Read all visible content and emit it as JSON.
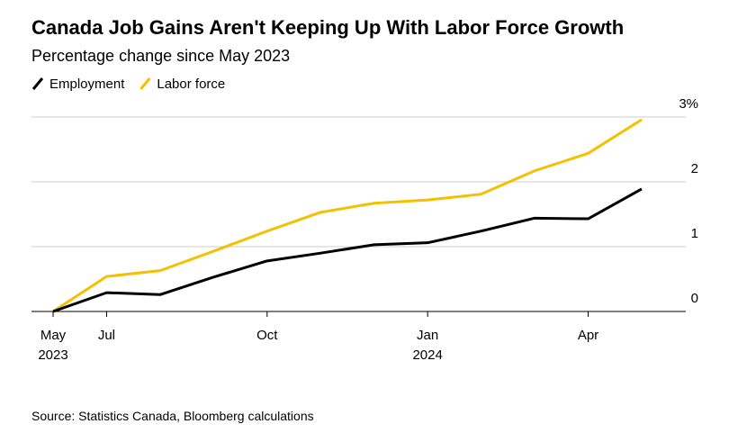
{
  "chart_data": {
    "type": "line",
    "title": "Canada Job Gains Aren't Keeping Up With Labor Force Growth",
    "subtitle": "Percentage change since May 2023",
    "source": "Source: Statistics Canada, Bloomberg calculations",
    "categories": [
      "May",
      "Jul",
      null,
      null,
      "Oct",
      null,
      null,
      "Jan",
      null,
      null,
      "Apr",
      null
    ],
    "year_labels": [
      "2023",
      null,
      null,
      null,
      null,
      null,
      null,
      "2024",
      null,
      null,
      null,
      null
    ],
    "series": [
      {
        "name": "Employment",
        "color": "#000000",
        "values": [
          0,
          0.29,
          0.26,
          0.53,
          0.78,
          0.9,
          1.03,
          1.06,
          1.24,
          1.44,
          1.43,
          1.89
        ]
      },
      {
        "name": "Labor force",
        "color": "#f5c000",
        "values": [
          0,
          0.54,
          0.63,
          0.93,
          1.24,
          1.53,
          1.67,
          1.72,
          1.81,
          2.17,
          2.44,
          2.96
        ]
      }
    ],
    "ylim": [
      0,
      3
    ],
    "yticks": [
      0,
      1,
      2,
      {
        "value": 3,
        "label": "3%"
      }
    ],
    "grid": true,
    "legend": "top-left"
  }
}
